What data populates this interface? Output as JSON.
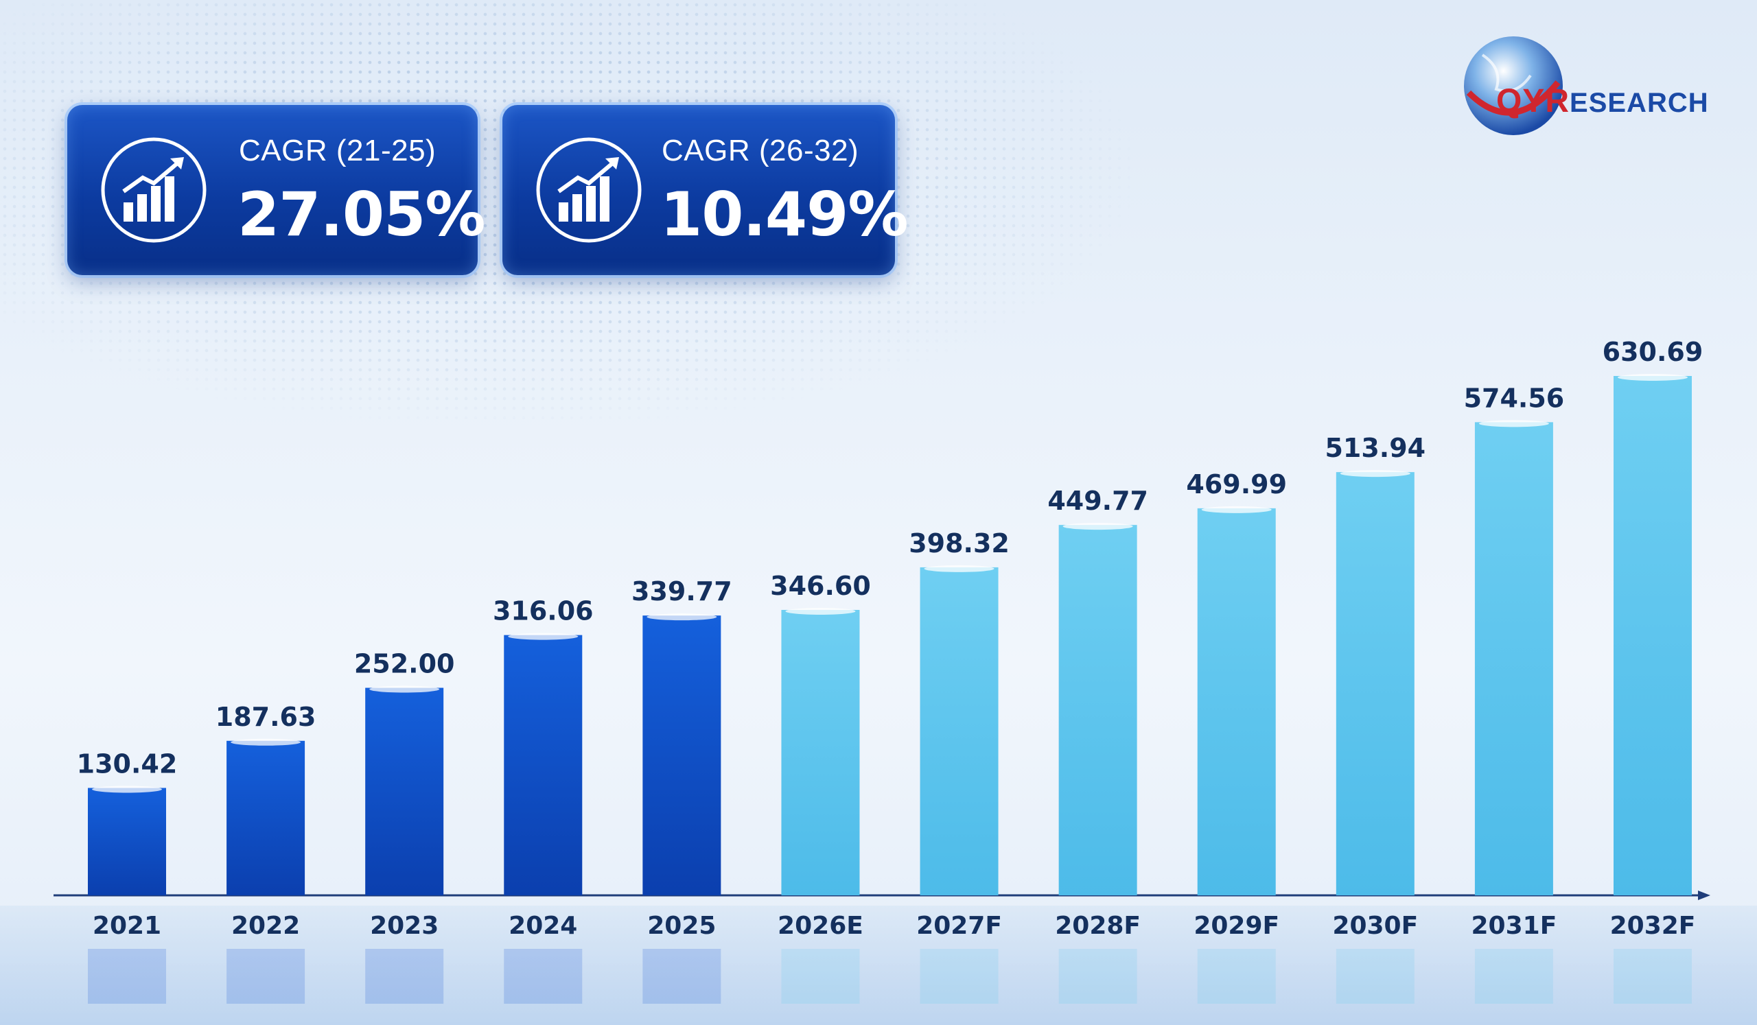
{
  "logo": {
    "brand_part1": "QYR",
    "brand_part2": "ESEARCH"
  },
  "cards": [
    {
      "label": "CAGR (21-25)",
      "value": "27.05%",
      "icon": "growth-chart-icon"
    },
    {
      "label": "CAGR (26-32)",
      "value": "10.49%",
      "icon": "growth-chart-icon"
    }
  ],
  "colors": {
    "historical_bar": "#0d4fd4",
    "forecast_bar": "#5cc6ee",
    "card": "#0c3ba0",
    "label_text": "#14305e",
    "brand_red": "#d0262e",
    "brand_blue": "#1b4aa6"
  },
  "chart_data": {
    "type": "bar",
    "title": "",
    "xlabel": "",
    "ylabel": "",
    "categories": [
      "2021",
      "2022",
      "2023",
      "2024",
      "2025",
      "2026E",
      "2027F",
      "2028F",
      "2029F",
      "2030F",
      "2031F",
      "2032F"
    ],
    "values": [
      130.42,
      187.63,
      252.0,
      316.06,
      339.77,
      346.6,
      398.32,
      449.77,
      469.99,
      513.94,
      574.56,
      630.69
    ],
    "value_labels": [
      "130.42",
      "187.63",
      "252.00",
      "316.06",
      "339.77",
      "346.60",
      "398.32",
      "449.77",
      "469.99",
      "513.94",
      "574.56",
      "630.69"
    ],
    "historical_count": 5,
    "ylim": [
      0,
      630.69
    ],
    "grid": false,
    "legend": "none"
  }
}
